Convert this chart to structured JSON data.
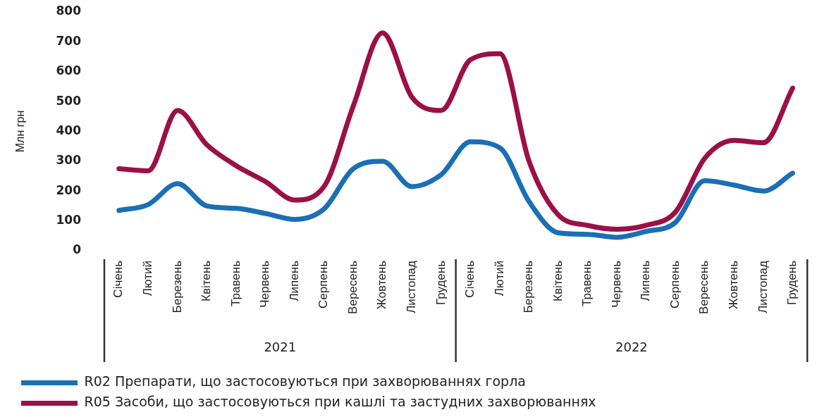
{
  "chart_data": {
    "type": "line",
    "ylabel": "Млн грн",
    "categories": [
      "Січень",
      "Лютий",
      "Березень",
      "Квітень",
      "Травень",
      "Червень",
      "Липень",
      "Серпень",
      "Вересень",
      "Жовтень",
      "Листопад",
      "Грудень",
      "Січень",
      "Лютий",
      "Березень",
      "Квітень",
      "Травень",
      "Червень",
      "Липень",
      "Серпень",
      "Вересень",
      "Жовтень",
      "Листопад",
      "Грудень"
    ],
    "series": [
      {
        "name": "R02 Препарати, що застосовуються при захворюваннях горла",
        "color": "#1a6fb5",
        "values": [
          135,
          155,
          225,
          150,
          142,
          125,
          105,
          140,
          275,
          300,
          215,
          255,
          365,
          345,
          165,
          60,
          55,
          45,
          65,
          95,
          235,
          220,
          200,
          260
        ]
      },
      {
        "name": "R05 Засоби, що застосовуються при кашлі та застудних захворюваннях",
        "color": "#9b1046",
        "values": [
          275,
          268,
          470,
          355,
          285,
          232,
          170,
          215,
          485,
          730,
          515,
          470,
          640,
          660,
          300,
          120,
          85,
          72,
          85,
          130,
          310,
          370,
          362,
          545
        ]
      }
    ],
    "ylim": [
      0,
      800
    ],
    "yticks": [
      0,
      100,
      200,
      300,
      400,
      500,
      600,
      700,
      800
    ],
    "legend": "bottom",
    "marker": "none",
    "annotations": [
      "2021",
      "2022"
    ]
  }
}
